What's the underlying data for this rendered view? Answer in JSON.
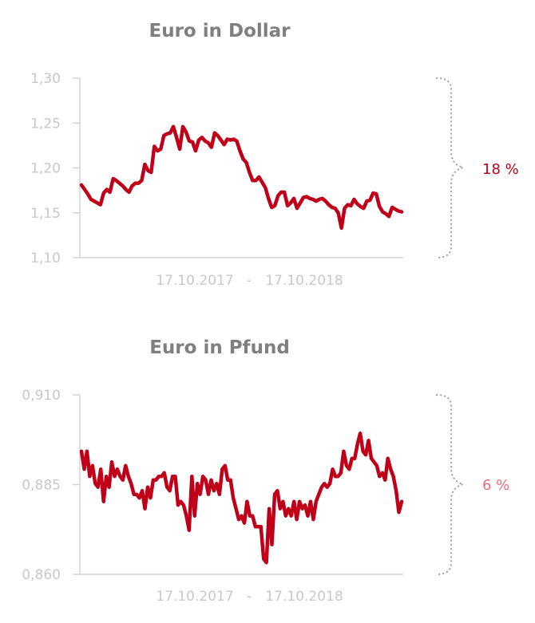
{
  "colors": {
    "series": "#c00018",
    "axis": "#d3d3d3",
    "tick_text": "#c8c8c8",
    "title": "#7f7f7f",
    "pct_1": "#c00018",
    "pct_2": "#e27078"
  },
  "chart_data": [
    {
      "type": "line",
      "title": "Euro in Dollar",
      "date_range": {
        "start": "17.10.2017",
        "sep": "-",
        "end": "17.10.2018"
      },
      "ylim": [
        1.1,
        1.3
      ],
      "yticks": [
        {
          "value": 1.1,
          "label": "1,10"
        },
        {
          "value": 1.15,
          "label": "1,15"
        },
        {
          "value": 1.2,
          "label": "1,20"
        },
        {
          "value": 1.25,
          "label": "1,25"
        },
        {
          "value": 1.3,
          "label": "1,30"
        }
      ],
      "range_label": "18 %",
      "series": [
        {
          "values": [
            1.181,
            1.176,
            1.171,
            1.165,
            1.163,
            1.161,
            1.159,
            1.172,
            1.176,
            1.173,
            1.188,
            1.186,
            1.183,
            1.18,
            1.176,
            1.173,
            1.18,
            1.183,
            1.183,
            1.186,
            1.204,
            1.197,
            1.195,
            1.224,
            1.219,
            1.221,
            1.236,
            1.238,
            1.239,
            1.246,
            1.234,
            1.221,
            1.246,
            1.24,
            1.23,
            1.229,
            1.219,
            1.231,
            1.234,
            1.23,
            1.228,
            1.223,
            1.239,
            1.236,
            1.231,
            1.226,
            1.232,
            1.231,
            1.232,
            1.23,
            1.219,
            1.21,
            1.206,
            1.195,
            1.186,
            1.186,
            1.19,
            1.184,
            1.178,
            1.166,
            1.156,
            1.158,
            1.169,
            1.173,
            1.173,
            1.158,
            1.161,
            1.166,
            1.155,
            1.161,
            1.167,
            1.168,
            1.166,
            1.165,
            1.163,
            1.165,
            1.166,
            1.163,
            1.159,
            1.156,
            1.155,
            1.15,
            1.133,
            1.155,
            1.159,
            1.158,
            1.165,
            1.16,
            1.157,
            1.155,
            1.163,
            1.164,
            1.172,
            1.171,
            1.157,
            1.151,
            1.149,
            1.146,
            1.156,
            1.154,
            1.152,
            1.151
          ]
        }
      ]
    },
    {
      "type": "line",
      "title": "Euro in Pfund",
      "date_range": {
        "start": "17.10.2017",
        "sep": "-",
        "end": "17.10.2018"
      },
      "ylim": [
        0.86,
        0.91
      ],
      "yticks": [
        {
          "value": 0.86,
          "label": "0,860"
        },
        {
          "value": 0.885,
          "label": "0,885"
        },
        {
          "value": 0.91,
          "label": "0,910"
        }
      ],
      "range_label": "6 %",
      "series": [
        {
          "values": [
            0.8943,
            0.8893,
            0.8943,
            0.8873,
            0.8903,
            0.8853,
            0.8843,
            0.8893,
            0.8803,
            0.8873,
            0.8843,
            0.8913,
            0.8873,
            0.8893,
            0.8873,
            0.8863,
            0.8903,
            0.8873,
            0.8853,
            0.8823,
            0.8823,
            0.8813,
            0.8833,
            0.8783,
            0.8843,
            0.8813,
            0.8863,
            0.8863,
            0.8873,
            0.8873,
            0.8883,
            0.8843,
            0.8833,
            0.8873,
            0.8873,
            0.8793,
            0.8803,
            0.8793,
            0.8763,
            0.8723,
            0.8873,
            0.8763,
            0.8853,
            0.8823,
            0.8873,
            0.8863,
            0.8823,
            0.8863,
            0.8833,
            0.8853,
            0.8823,
            0.8893,
            0.8903,
            0.8863,
            0.8863,
            0.8813,
            0.8783,
            0.8753,
            0.8763,
            0.8743,
            0.8803,
            0.8763,
            0.8763,
            0.8733,
            0.8733,
            0.8733,
            0.8643,
            0.8633,
            0.8783,
            0.8683,
            0.8823,
            0.8833,
            0.8783,
            0.8803,
            0.8763,
            0.8783,
            0.8763,
            0.8803,
            0.8753,
            0.8803,
            0.8783,
            0.8793,
            0.8763,
            0.8803,
            0.8753,
            0.8803,
            0.8823,
            0.8843,
            0.8853,
            0.8843,
            0.8853,
            0.8893,
            0.8873,
            0.8873,
            0.8883,
            0.8943,
            0.8903,
            0.8893,
            0.8923,
            0.8923,
            0.8963,
            0.8993,
            0.8943,
            0.8933,
            0.8973,
            0.8923,
            0.8913,
            0.8903,
            0.8873,
            0.8883,
            0.8863,
            0.8923,
            0.8893,
            0.8873,
            0.8833,
            0.8773,
            0.8803
          ]
        }
      ]
    }
  ]
}
